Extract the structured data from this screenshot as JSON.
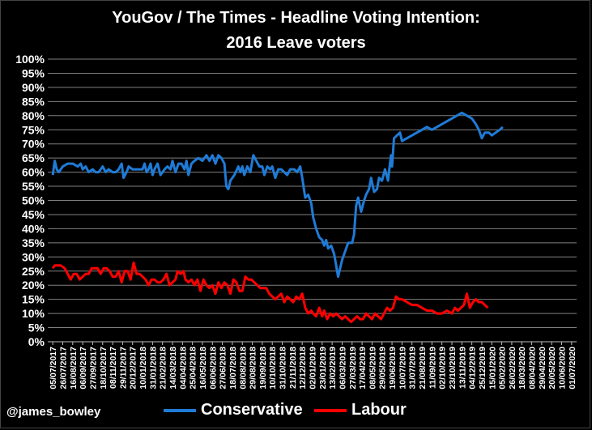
{
  "title_line1": "YouGov / The Times - Headline Voting Intention:",
  "title_line2": "2016 Leave voters",
  "credit": "@james_bowley",
  "colors": {
    "background": "#000000",
    "conservative": "#1f7bd6",
    "labour": "#ff0000",
    "grid": "#7f7f7f",
    "text": "#ffffff"
  },
  "chart_data": {
    "type": "line",
    "title": "YouGov / The Times - Headline Voting Intention: 2016 Leave voters",
    "xlabel": "",
    "ylabel": "",
    "ylim": [
      0,
      100
    ],
    "y_ticks": [
      "0%",
      "5%",
      "10%",
      "15%",
      "20%",
      "25%",
      "30%",
      "35%",
      "40%",
      "45%",
      "50%",
      "55%",
      "60%",
      "65%",
      "70%",
      "75%",
      "80%",
      "85%",
      "90%",
      "95%",
      "100%"
    ],
    "x_tick_labels": [
      "05/07/2017",
      "26/07/2017",
      "16/08/2017",
      "06/09/2017",
      "27/09/2017",
      "18/10/2017",
      "08/11/2017",
      "29/11/2017",
      "20/12/2017",
      "10/01/2018",
      "31/01/2018",
      "21/02/2018",
      "14/03/2018",
      "04/04/2018",
      "25/04/2018",
      "16/05/2018",
      "06/06/2018",
      "27/06/2018",
      "18/07/2018",
      "08/08/2018",
      "29/08/2018",
      "19/09/2018",
      "10/10/2018",
      "31/10/2018",
      "21/11/2018",
      "12/12/2018",
      "02/01/2019",
      "23/01/2019",
      "13/02/2019",
      "06/03/2019",
      "27/03/2019",
      "17/04/2019",
      "08/05/2019",
      "29/05/2019",
      "19/06/2019",
      "10/07/2019",
      "31/07/2019",
      "21/08/2019",
      "11/09/2019",
      "02/10/2019",
      "23/10/2019",
      "13/11/2019",
      "04/12/2019",
      "25/12/2019",
      "15/01/2020",
      "05/02/2020",
      "26/02/2020",
      "18/03/2020",
      "08/04/2020",
      "29/04/2020",
      "20/05/2020",
      "10/06/2020",
      "01/07/2020"
    ],
    "legend_position": "bottom",
    "series": [
      {
        "name": "Conservative",
        "color": "#1f7bd6",
        "points": [
          [
            0,
            59
          ],
          [
            0.2,
            64
          ],
          [
            0.4,
            61
          ],
          [
            0.6,
            60
          ],
          [
            1,
            62
          ],
          [
            1.5,
            63
          ],
          [
            2,
            63
          ],
          [
            2.5,
            62
          ],
          [
            2.8,
            63
          ],
          [
            3,
            61
          ],
          [
            3.3,
            62
          ],
          [
            3.6,
            60
          ],
          [
            4,
            61
          ],
          [
            4.3,
            60
          ],
          [
            4.6,
            60
          ],
          [
            5,
            62
          ],
          [
            5.3,
            60
          ],
          [
            5.6,
            61
          ],
          [
            6,
            60
          ],
          [
            6.3,
            60
          ],
          [
            6.6,
            61
          ],
          [
            6.9,
            63
          ],
          [
            7.1,
            58
          ],
          [
            7.4,
            60
          ],
          [
            7.6,
            62
          ],
          [
            8,
            61
          ],
          [
            8.5,
            61
          ],
          [
            9,
            61
          ],
          [
            9.2,
            63
          ],
          [
            9.4,
            60
          ],
          [
            9.6,
            61
          ],
          [
            9.8,
            63
          ],
          [
            10,
            59
          ],
          [
            10.2,
            61
          ],
          [
            10.5,
            63
          ],
          [
            10.8,
            59
          ],
          [
            11.2,
            61
          ],
          [
            11.5,
            62
          ],
          [
            11.8,
            61
          ],
          [
            12,
            64
          ],
          [
            12.3,
            60
          ],
          [
            12.6,
            63
          ],
          [
            12.9,
            63
          ],
          [
            13.2,
            61
          ],
          [
            13.4,
            64
          ],
          [
            13.6,
            59
          ],
          [
            13.9,
            63
          ],
          [
            14.2,
            64
          ],
          [
            14.6,
            65
          ],
          [
            15,
            64
          ],
          [
            15.4,
            66
          ],
          [
            15.7,
            64
          ],
          [
            16,
            66
          ],
          [
            16.3,
            63
          ],
          [
            16.6,
            66
          ],
          [
            16.9,
            65
          ],
          [
            17.2,
            63
          ],
          [
            17.4,
            55
          ],
          [
            17.6,
            54
          ],
          [
            17.8,
            57
          ],
          [
            18.2,
            59
          ],
          [
            18.6,
            62
          ],
          [
            18.8,
            60
          ],
          [
            19,
            62
          ],
          [
            19.2,
            59
          ],
          [
            19.5,
            62
          ],
          [
            19.8,
            60
          ],
          [
            20.1,
            66
          ],
          [
            20.4,
            64
          ],
          [
            20.7,
            62
          ],
          [
            21,
            62
          ],
          [
            21.2,
            59
          ],
          [
            21.5,
            62
          ],
          [
            21.8,
            61
          ],
          [
            22,
            62
          ],
          [
            22.3,
            58
          ],
          [
            22.6,
            61
          ],
          [
            22.9,
            61
          ],
          [
            23.2,
            60
          ],
          [
            23.5,
            59
          ],
          [
            23.8,
            61
          ],
          [
            24.2,
            61
          ],
          [
            24.5,
            60
          ],
          [
            24.8,
            62
          ],
          [
            25,
            58
          ],
          [
            25.3,
            51
          ],
          [
            25.6,
            52
          ],
          [
            25.9,
            49
          ],
          [
            26.1,
            44
          ],
          [
            26.4,
            40
          ],
          [
            26.7,
            37
          ],
          [
            27,
            36
          ],
          [
            27.2,
            34
          ],
          [
            27.4,
            36
          ],
          [
            27.6,
            33
          ],
          [
            27.9,
            34
          ],
          [
            28.2,
            31
          ],
          [
            28.4,
            27
          ],
          [
            28.6,
            23
          ],
          [
            28.8,
            26
          ],
          [
            29,
            29
          ],
          [
            29.3,
            32
          ],
          [
            29.6,
            35
          ],
          [
            30,
            35
          ],
          [
            30.2,
            38
          ],
          [
            30.4,
            48
          ],
          [
            30.6,
            51
          ],
          [
            30.9,
            46
          ],
          [
            31.2,
            50
          ],
          [
            31.4,
            52
          ],
          [
            31.7,
            54
          ],
          [
            31.9,
            58
          ],
          [
            32.2,
            53
          ],
          [
            32.5,
            54
          ],
          [
            32.7,
            58
          ],
          [
            33,
            57
          ],
          [
            33.3,
            61
          ],
          [
            33.6,
            57
          ],
          [
            33.9,
            66
          ],
          [
            34,
            62
          ],
          [
            34.2,
            72
          ],
          [
            34.5,
            73
          ],
          [
            34.8,
            74
          ],
          [
            35,
            71
          ],
          [
            35.5,
            72
          ],
          [
            36,
            73
          ],
          [
            36.5,
            74
          ],
          [
            37,
            75
          ],
          [
            37.5,
            76
          ],
          [
            38,
            75
          ],
          [
            38.5,
            76
          ],
          [
            39,
            77
          ],
          [
            39.5,
            78
          ],
          [
            40,
            79
          ],
          [
            40.5,
            80
          ],
          [
            41,
            81
          ],
          [
            41.5,
            80
          ],
          [
            42,
            79
          ],
          [
            42.4,
            77
          ],
          [
            42.7,
            75
          ],
          [
            43,
            72
          ],
          [
            43.3,
            74
          ],
          [
            43.7,
            74
          ],
          [
            44,
            73
          ],
          [
            44.4,
            74
          ],
          [
            44.8,
            75
          ],
          [
            45.1,
            76
          ]
        ]
      },
      {
        "name": "Labour",
        "color": "#ff0000",
        "points": [
          [
            0,
            26
          ],
          [
            0.2,
            27
          ],
          [
            0.5,
            27
          ],
          [
            0.8,
            27
          ],
          [
            1.2,
            26
          ],
          [
            1.5,
            24
          ],
          [
            1.8,
            22
          ],
          [
            2.1,
            24
          ],
          [
            2.4,
            24
          ],
          [
            2.7,
            22
          ],
          [
            3,
            23
          ],
          [
            3.3,
            24
          ],
          [
            3.6,
            24
          ],
          [
            3.9,
            26
          ],
          [
            4.2,
            26
          ],
          [
            4.5,
            26
          ],
          [
            4.8,
            24
          ],
          [
            5.1,
            26
          ],
          [
            5.4,
            26
          ],
          [
            5.7,
            25
          ],
          [
            6,
            23
          ],
          [
            6.3,
            23
          ],
          [
            6.6,
            25
          ],
          [
            6.9,
            21
          ],
          [
            7.2,
            25
          ],
          [
            7.5,
            25
          ],
          [
            7.8,
            22
          ],
          [
            8.1,
            28
          ],
          [
            8.4,
            24
          ],
          [
            8.7,
            24
          ],
          [
            9,
            23
          ],
          [
            9.3,
            22
          ],
          [
            9.6,
            20
          ],
          [
            9.9,
            22
          ],
          [
            10.2,
            22
          ],
          [
            10.5,
            21
          ],
          [
            10.8,
            21
          ],
          [
            11.1,
            22
          ],
          [
            11.4,
            24
          ],
          [
            11.7,
            20
          ],
          [
            12,
            21
          ],
          [
            12.3,
            22
          ],
          [
            12.5,
            25
          ],
          [
            12.8,
            24
          ],
          [
            13.1,
            25
          ],
          [
            13.3,
            22
          ],
          [
            13.6,
            21
          ],
          [
            13.9,
            22
          ],
          [
            14.2,
            20
          ],
          [
            14.5,
            22
          ],
          [
            14.8,
            18
          ],
          [
            15.1,
            22
          ],
          [
            15.4,
            20
          ],
          [
            15.7,
            19
          ],
          [
            16,
            20
          ],
          [
            16.3,
            17
          ],
          [
            16.6,
            21
          ],
          [
            16.9,
            19
          ],
          [
            17.2,
            21
          ],
          [
            17.5,
            20
          ],
          [
            17.8,
            17
          ],
          [
            18.1,
            22
          ],
          [
            18.4,
            21
          ],
          [
            18.7,
            18
          ],
          [
            19,
            18
          ],
          [
            19.3,
            23
          ],
          [
            19.6,
            22
          ],
          [
            19.9,
            22
          ],
          [
            20.2,
            21
          ],
          [
            20.5,
            20
          ],
          [
            20.8,
            19
          ],
          [
            21.1,
            19
          ],
          [
            21.4,
            19
          ],
          [
            21.7,
            17
          ],
          [
            22,
            16
          ],
          [
            22.3,
            15
          ],
          [
            22.6,
            16
          ],
          [
            22.9,
            17
          ],
          [
            23.2,
            14
          ],
          [
            23.5,
            16
          ],
          [
            23.8,
            15
          ],
          [
            24.1,
            14
          ],
          [
            24.4,
            16
          ],
          [
            24.7,
            15
          ],
          [
            25,
            17
          ],
          [
            25.3,
            12
          ],
          [
            25.6,
            10
          ],
          [
            25.9,
            11
          ],
          [
            26.1,
            10
          ],
          [
            26.4,
            9
          ],
          [
            26.7,
            12
          ],
          [
            27,
            9
          ],
          [
            27.2,
            11
          ],
          [
            27.5,
            8
          ],
          [
            27.8,
            10
          ],
          [
            28.1,
            9
          ],
          [
            28.4,
            10
          ],
          [
            28.7,
            9
          ],
          [
            29,
            8
          ],
          [
            29.3,
            9
          ],
          [
            29.6,
            8
          ],
          [
            29.9,
            7
          ],
          [
            30.2,
            8
          ],
          [
            30.5,
            9
          ],
          [
            30.8,
            8
          ],
          [
            31.1,
            8
          ],
          [
            31.4,
            10
          ],
          [
            31.7,
            9
          ],
          [
            32,
            8
          ],
          [
            32.3,
            10
          ],
          [
            32.6,
            9
          ],
          [
            32.9,
            8
          ],
          [
            33.2,
            10
          ],
          [
            33.5,
            12
          ],
          [
            33.8,
            11
          ],
          [
            34.1,
            12
          ],
          [
            34.4,
            16
          ],
          [
            34.7,
            15
          ],
          [
            35,
            15
          ],
          [
            35.5,
            14
          ],
          [
            36,
            13
          ],
          [
            36.5,
            13
          ],
          [
            37,
            12
          ],
          [
            37.5,
            11
          ],
          [
            38,
            11
          ],
          [
            38.5,
            10
          ],
          [
            39,
            10
          ],
          [
            39.5,
            11
          ],
          [
            40,
            10
          ],
          [
            40.3,
            12
          ],
          [
            40.6,
            11
          ],
          [
            40.9,
            12
          ],
          [
            41.2,
            13
          ],
          [
            41.5,
            17
          ],
          [
            41.8,
            12
          ],
          [
            42.1,
            14
          ],
          [
            42.4,
            15
          ],
          [
            42.7,
            14
          ],
          [
            43,
            14
          ],
          [
            43.3,
            13
          ],
          [
            43.6,
            12
          ]
        ]
      }
    ]
  }
}
